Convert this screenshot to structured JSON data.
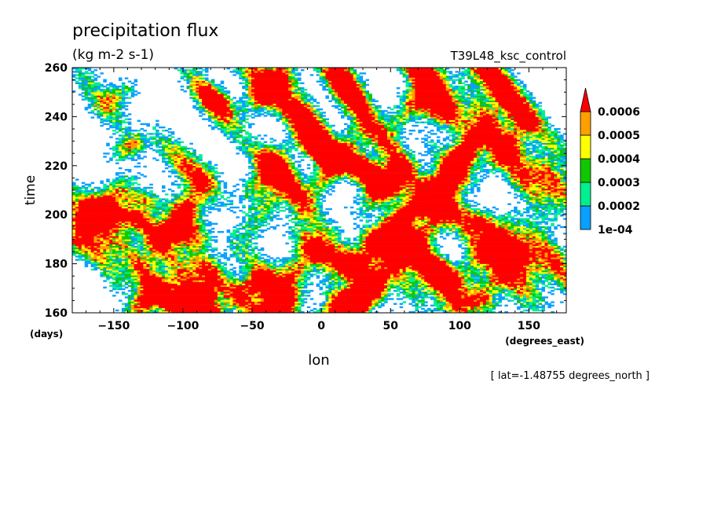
{
  "chart_data": {
    "type": "heatmap",
    "title": "precipitation flux",
    "units": "(kg m-2 s-1)",
    "run_label": "T39L48_ksc_control",
    "xlabel": "lon",
    "x_units": "(degrees_east)",
    "ylabel": "time",
    "y_units": "(days)",
    "annotation": "[ lat=-1.48755 degrees_north ]",
    "xlim": [
      -180,
      177
    ],
    "ylim": [
      160,
      260
    ],
    "x_ticks": [
      -150,
      -100,
      -50,
      0,
      50,
      100,
      150
    ],
    "y_ticks": [
      160,
      180,
      200,
      220,
      240,
      260
    ],
    "x_tick_labels": [
      "−150",
      "−100",
      "−50",
      "0",
      "50",
      "100",
      "150"
    ],
    "y_tick_labels": [
      "160",
      "180",
      "200",
      "220",
      "240",
      "260"
    ],
    "colorbar": {
      "levels": [
        "1e-04",
        "0.0002",
        "0.0003",
        "0.0004",
        "0.0005",
        "0.0006"
      ],
      "colors": [
        "#0aa0ff",
        "#00f090",
        "#10c800",
        "#ffff00",
        "#ffa000",
        "#ff0000"
      ],
      "extend": "max"
    },
    "background_color": "#ffffff",
    "grid": false
  }
}
